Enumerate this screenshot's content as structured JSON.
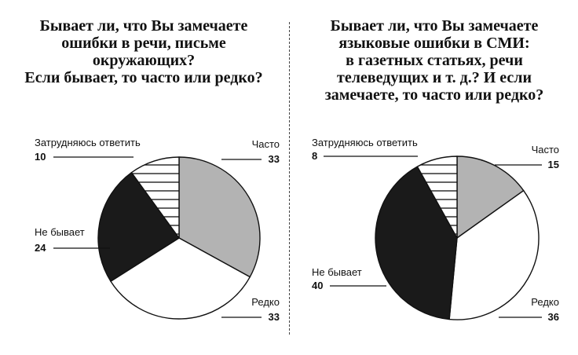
{
  "chart_data": [
    {
      "type": "pie",
      "title_lines": [
        "Бывает ли, что Вы замечаете",
        "ошибки в речи, письме",
        "окружающих?",
        "Если бывает, то часто или редко?"
      ],
      "slices": [
        {
          "label": "Часто",
          "value": 33,
          "color": "#b3b3b3",
          "pattern": "solid"
        },
        {
          "label": "Редко",
          "value": 33,
          "color": "#ffffff",
          "pattern": "solid"
        },
        {
          "label": "Не бывает",
          "value": 24,
          "color": "#1a1a1a",
          "pattern": "solid"
        },
        {
          "label": "Затрудняюсь ответить",
          "value": 10,
          "color": "#ffffff",
          "pattern": "hatched"
        }
      ]
    },
    {
      "type": "pie",
      "title_lines": [
        "Бывает ли, что Вы замечаете",
        "языковые ошибки в СМИ:",
        "в газетных статьях, речи",
        "телеведущих и т. д.? И если",
        "замечаете, то часто или редко?"
      ],
      "slices": [
        {
          "label": "Часто",
          "value": 15,
          "color": "#b3b3b3",
          "pattern": "solid"
        },
        {
          "label": "Редко",
          "value": 36,
          "color": "#ffffff",
          "pattern": "solid"
        },
        {
          "label": "Не бывает",
          "value": 40,
          "color": "#1a1a1a",
          "pattern": "solid"
        },
        {
          "label": "Затрудняюсь ответить",
          "value": 8,
          "color": "#ffffff",
          "pattern": "hatched"
        }
      ]
    }
  ]
}
